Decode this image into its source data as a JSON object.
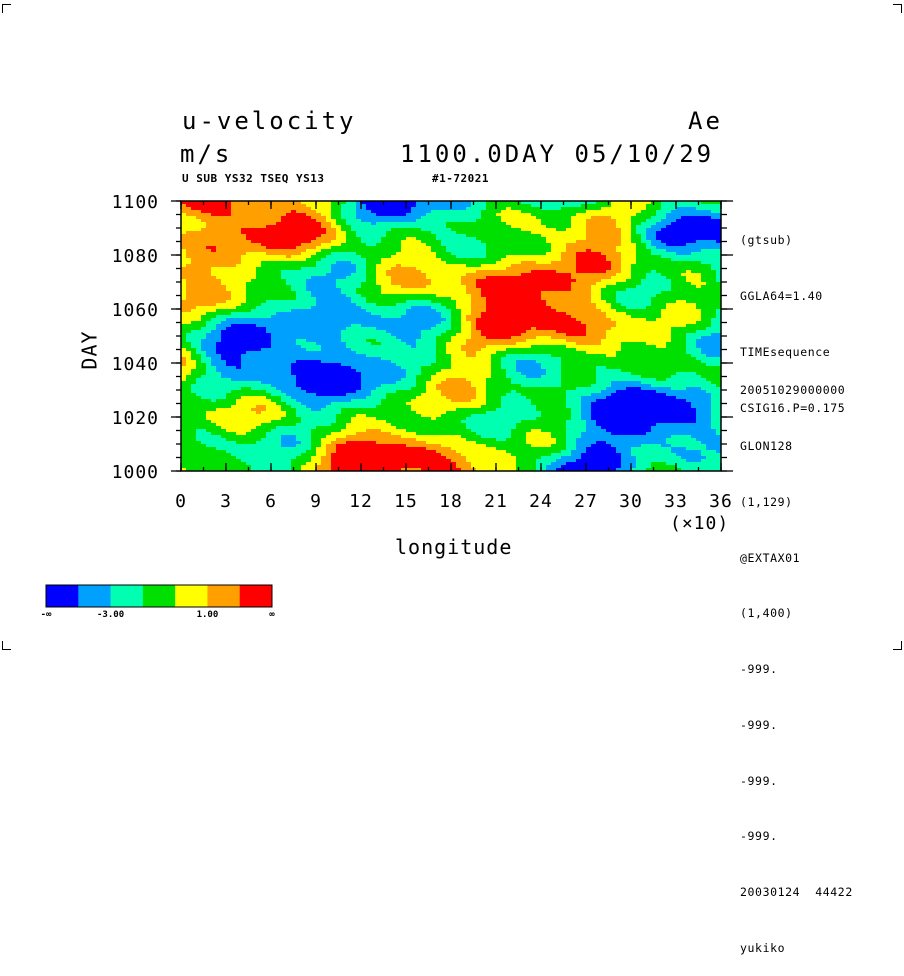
{
  "header": {
    "variable": "u-velocity",
    "units": "m/s",
    "model": "Ae",
    "time_stamp": "1100.0DAY 05/10/29",
    "subtitle": "U SUB YS32 TSEQ YS13",
    "run_id": "#1-72021"
  },
  "side_info": {
    "top": [
      "(gtsub)",
      "GGLA64=1.40",
      "TIMEsequence",
      "CSIG16.P=0.175"
    ],
    "bottom": [
      "20051029000000",
      "GLON128",
      "(1,129)",
      "@EXTAX01",
      "(1,400)",
      "-999.",
      "-999.",
      "-999.",
      "-999.",
      "20030124  44422",
      "yukiko"
    ]
  },
  "chart_data": {
    "type": "heatmap",
    "title": "u-velocity",
    "xlabel": "longitude",
    "xlabel_scale": "(×10)",
    "ylabel": "DAY",
    "xlim": [
      0,
      36
    ],
    "ylim": [
      1000,
      1100
    ],
    "x_ticks": [
      "0",
      "3",
      "6",
      "9",
      "12",
      "15",
      "18",
      "21",
      "24",
      "27",
      "30",
      "33",
      "36"
    ],
    "y_ticks": [
      "1000",
      "1020",
      "1040",
      "1060",
      "1080",
      "1100"
    ],
    "colorbar": {
      "colors": [
        "#0000ff",
        "#00a0ff",
        "#00ffb0",
        "#00e000",
        "#ffff00",
        "#ffa000",
        "#ff0000"
      ],
      "labels": [
        "-∞",
        "-3.00",
        "1.00",
        "∞"
      ]
    }
  }
}
